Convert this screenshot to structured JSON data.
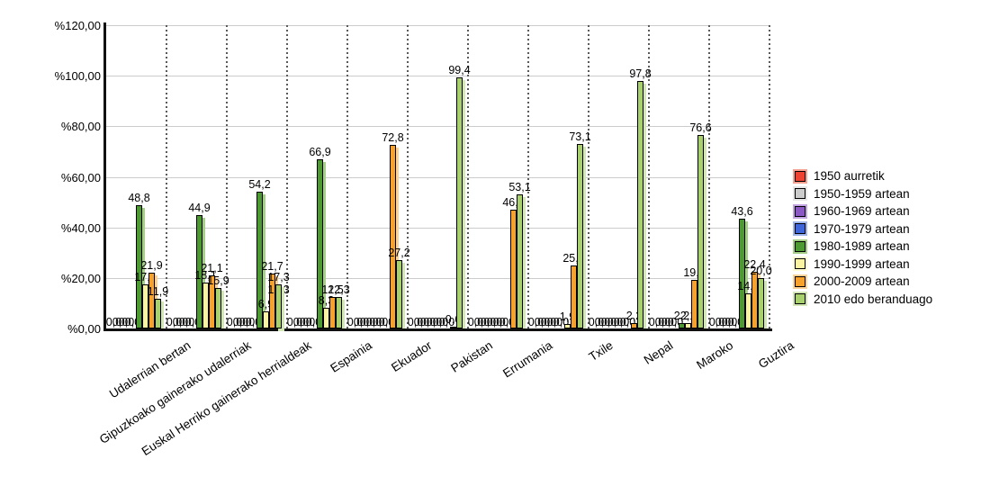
{
  "chart_data": {
    "type": "bar",
    "title": "",
    "xlabel": "",
    "ylabel": "",
    "ylim": [
      0,
      120
    ],
    "ytick_step": 20,
    "y_tick_labels": [
      "%0,00",
      "%20,00",
      "%40,00",
      "%60,00",
      "%80,00",
      "%100,00",
      "%120,00"
    ],
    "grid": true,
    "legend_position": "right",
    "zero_label": "0,0",
    "categories": [
      "Udalerrian bertan",
      "Gipuzkoako gainerako udalerriak",
      "Euskal Herriko gainerako herrialdeak",
      "Espainia",
      "Ekuador",
      "Pakistan",
      "Errumania",
      "Txile",
      "Nepal",
      "Maroko",
      "Guztira"
    ],
    "series": [
      {
        "name": "1950 aurretik",
        "color": "#ee4332",
        "halo": "#f7a violet08f",
        "values": [
          0,
          0,
          0,
          0,
          0,
          0,
          0,
          0,
          0,
          0,
          0
        ]
      },
      {
        "name": "1950-1959 artean",
        "color": "#cccccc",
        "halo": "#e6e6e6",
        "values": [
          0,
          0,
          0,
          0,
          0,
          0,
          0,
          0,
          0,
          0,
          0
        ]
      },
      {
        "name": "1960-1969 artean",
        "color": "#8c58c4",
        "halo": "#c3a4e2",
        "values": [
          0,
          0,
          0,
          0,
          0,
          0,
          0,
          0,
          0,
          0,
          0
        ]
      },
      {
        "name": "1970-1979 artean",
        "color": "#3f66d8",
        "halo": "#9db4ec",
        "values": [
          0,
          0,
          0,
          0,
          0,
          0,
          0,
          0,
          0,
          0,
          0
        ]
      },
      {
        "name": "1980-1989 artean",
        "color": "#4d9a33",
        "halo": "#a5cf87",
        "values": [
          48.8,
          44.9,
          54.2,
          66.9,
          0,
          0,
          0,
          0,
          0,
          2.2,
          43.6
        ]
      },
      {
        "name": "1990-1999 artean",
        "color": "#f9f3a2",
        "halo": "#fdfad2",
        "values": [
          17.4,
          18.1,
          6.9,
          8.3,
          0,
          0,
          0,
          1.9,
          0,
          2.1,
          14.0
        ]
      },
      {
        "name": "2000-2009 artean",
        "color": "#f8a22e",
        "halo": "#fcd296",
        "values": [
          21.9,
          21.1,
          21.7,
          12.5,
          72.8,
          0.6,
          46.9,
          25.0,
          2.2,
          19.1,
          22.4
        ]
      },
      {
        "name": "2010 edo beranduago",
        "color": "#a8d06d",
        "halo": "#d3e7b6",
        "values": [
          11.9,
          15.9,
          12.3,
          12.3,
          27.2,
          99.4,
          53.1,
          73.1,
          97.8,
          76.6,
          20.0
        ]
      }
    ]
  }
}
